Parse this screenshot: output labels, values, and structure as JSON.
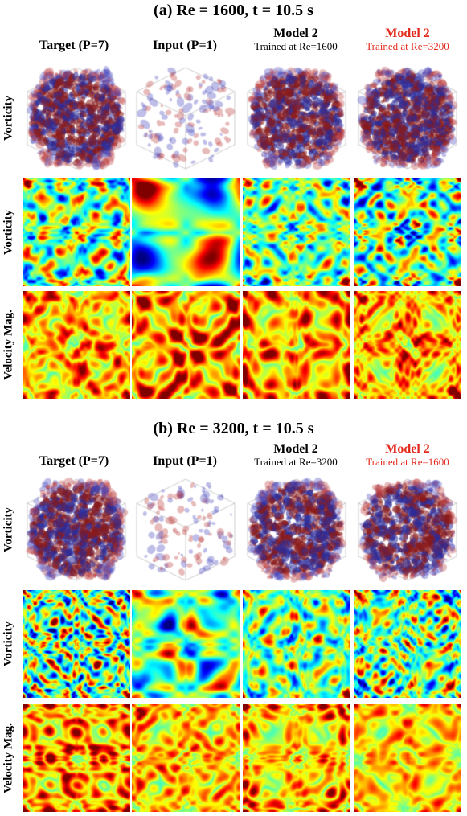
{
  "figure": {
    "sections": [
      {
        "id": "a",
        "title": "(a) Re = 1600, t = 10.5 s",
        "columns": [
          {
            "main": "Target (P=7)",
            "sub": "",
            "highlight": false
          },
          {
            "main": "Input (P=1)",
            "sub": "",
            "highlight": false
          },
          {
            "main": "Model 2",
            "sub": "Trained at Re=1600",
            "highlight": false
          },
          {
            "main": "Model 2",
            "sub": "Trained at Re=3200",
            "highlight": true
          }
        ],
        "rows": [
          "Vorticity",
          "Vorticity",
          "Velocity Mag."
        ]
      },
      {
        "id": "b",
        "title": "(b) Re = 3200, t = 10.5 s",
        "columns": [
          {
            "main": "Target (P=7)",
            "sub": "",
            "highlight": false
          },
          {
            "main": "Input (P=1)",
            "sub": "",
            "highlight": false
          },
          {
            "main": "Model 2",
            "sub": "Trained at Re=3200",
            "highlight": false
          },
          {
            "main": "Model 2",
            "sub": "Trained at Re=1600",
            "highlight": true
          }
        ],
        "rows": [
          "Vorticity",
          "Vorticity",
          "Velocity Mag."
        ]
      }
    ],
    "colors": {
      "highlight": "#e32a1d",
      "isosurface_positive": "#8b1a1a",
      "isosurface_negative": "#2c2c9a",
      "colormap": "jet"
    }
  }
}
